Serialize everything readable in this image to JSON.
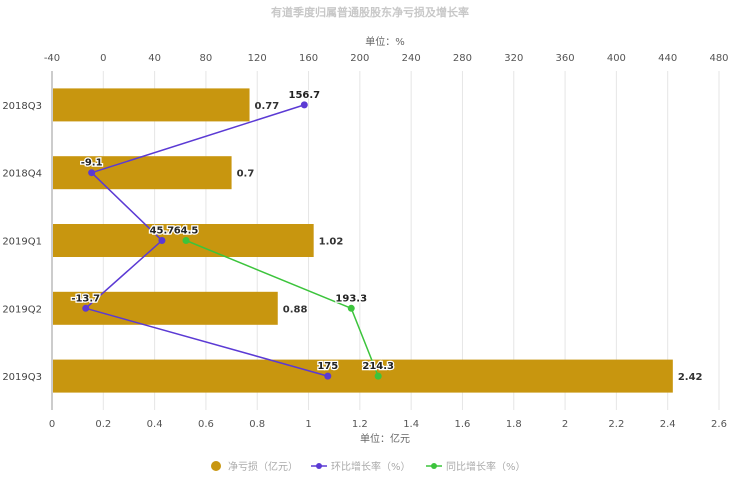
{
  "chart_data": {
    "type": "bar",
    "orientation": "horizontal",
    "title": "有道季度归属普通股股东净亏损及增长率",
    "categories": [
      "2018Q3",
      "2018Q4",
      "2019Q1",
      "2019Q2",
      "2019Q3"
    ],
    "x_bottom": {
      "label": "单位：亿元",
      "range": [
        0,
        2.6
      ],
      "ticks": [
        "0",
        "0.2",
        "0.4",
        "0.6",
        "0.8",
        "1",
        "1.2",
        "1.4",
        "1.6",
        "1.8",
        "2",
        "2.2",
        "2.4",
        "2.6"
      ]
    },
    "x_top": {
      "label": "单位：%",
      "range": [
        -40,
        480
      ],
      "ticks": [
        "-40",
        "0",
        "40",
        "80",
        "120",
        "160",
        "200",
        "240",
        "280",
        "320",
        "360",
        "400",
        "440",
        "480"
      ]
    },
    "grid": "vertical",
    "legend_position": "bottom",
    "series": [
      {
        "name": "净亏损（亿元）",
        "kind": "bar",
        "axis": "bottom",
        "color": "#c8960f",
        "values": [
          0.77,
          0.7,
          1.02,
          0.88,
          2.42
        ],
        "labels": [
          "0.77",
          "0.7",
          "1.02",
          "0.88",
          "2.42"
        ]
      },
      {
        "name": "环比增长率（%）",
        "kind": "line",
        "axis": "top",
        "color": "#5b3ad4",
        "values": [
          156.7,
          -9.1,
          45.7,
          -13.7,
          175
        ],
        "labels": [
          "156.7",
          "-9.1",
          "45.7",
          "-13.7",
          "175"
        ]
      },
      {
        "name": "同比增长率（%）",
        "kind": "line",
        "axis": "top",
        "color": "#3cc43c",
        "values": [
          null,
          null,
          64.5,
          193.3,
          214.3
        ],
        "labels": [
          "",
          "",
          "64.5",
          "193.3",
          "214.3"
        ]
      }
    ]
  }
}
